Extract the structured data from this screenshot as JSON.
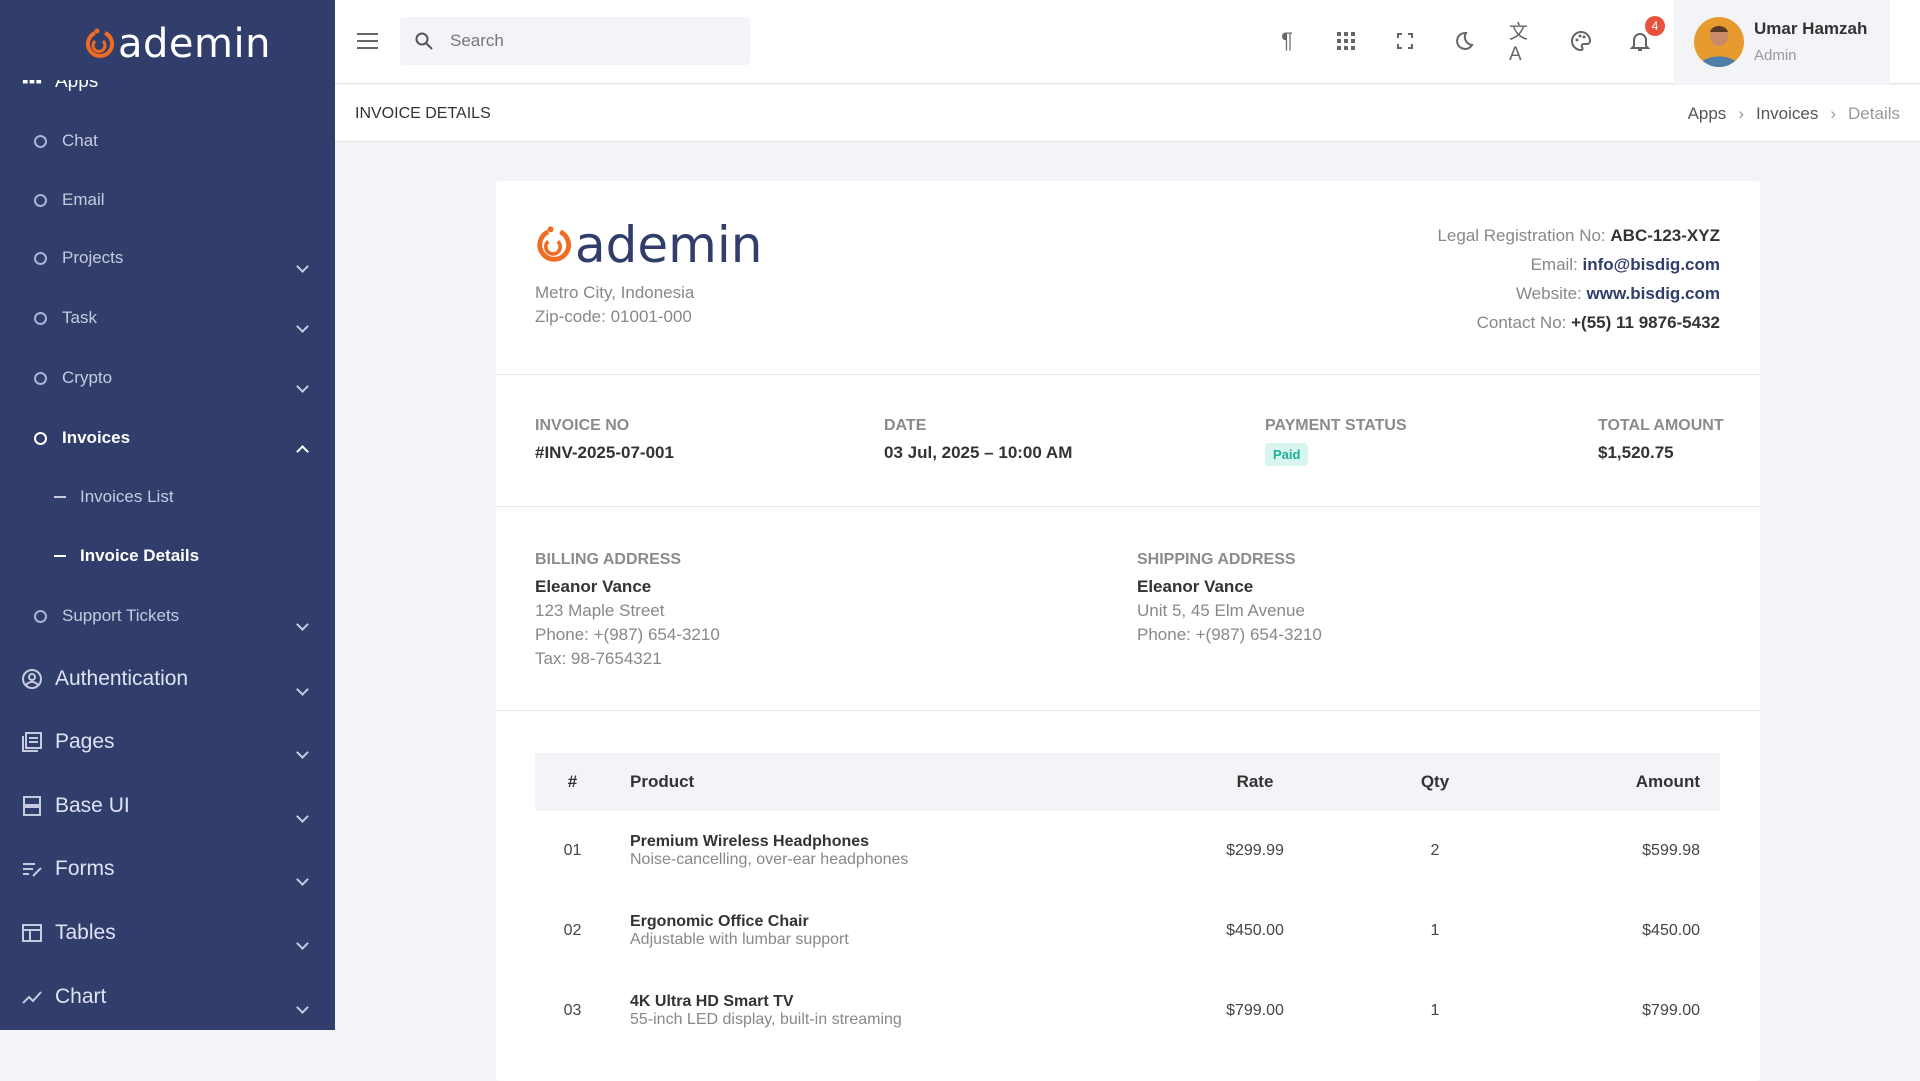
{
  "brand": {
    "name": "ademin",
    "accent": "#f06c22",
    "sidebar_bg": "#313d6b"
  },
  "sidebar": {
    "apps_label": "Apps",
    "items": [
      {
        "label": "Chat"
      },
      {
        "label": "Email"
      },
      {
        "label": "Projects",
        "chevron": "down"
      },
      {
        "label": "Task",
        "chevron": "down"
      },
      {
        "label": "Crypto",
        "chevron": "down"
      },
      {
        "label": "Invoices",
        "chevron": "up",
        "active": true
      },
      {
        "label": "Support Tickets",
        "chevron": "down"
      }
    ],
    "sub_items": [
      {
        "label": "Invoices List"
      },
      {
        "label": "Invoice Details",
        "active": true
      }
    ],
    "sections": [
      {
        "label": "Authentication",
        "icon": "user-circle-icon"
      },
      {
        "label": "Pages",
        "icon": "pages-icon"
      },
      {
        "label": "Base UI",
        "icon": "layers-icon"
      },
      {
        "label": "Forms",
        "icon": "form-edit-icon"
      },
      {
        "label": "Tables",
        "icon": "table-icon"
      },
      {
        "label": "Chart",
        "icon": "chart-line-icon"
      }
    ]
  },
  "topbar": {
    "search_placeholder": "Search",
    "notification_count": "4",
    "user": {
      "name": "Umar Hamzah",
      "role": "Admin"
    }
  },
  "page": {
    "title": "INVOICE DETAILS",
    "breadcrumb": [
      "Apps",
      "Invoices",
      "Details"
    ]
  },
  "invoice": {
    "company": {
      "address1": "Metro City, Indonesia",
      "address2": "Zip-code: 01001-000",
      "reg_label": "Legal Registration No:",
      "reg": "ABC-123-XYZ",
      "email_label": "Email:",
      "email": "info@bisdig.com",
      "website_label": "Website:",
      "website": "www.bisdig.com",
      "contact_label": "Contact No:",
      "contact": "+(55) 11 9876-5432"
    },
    "info": {
      "no_label": "INVOICE NO",
      "no": "#INV-2025-07-001",
      "date_label": "DATE",
      "date": "03 Jul, 2025 – 10:00 AM",
      "status_label": "PAYMENT STATUS",
      "status": "Paid",
      "total_label": "TOTAL AMOUNT",
      "total": "$1,520.75"
    },
    "billing": {
      "label": "BILLING ADDRESS",
      "name": "Eleanor Vance",
      "line1": "123 Maple Street",
      "phone": "Phone: +(987) 654-3210",
      "tax": "Tax: 98-7654321"
    },
    "shipping": {
      "label": "SHIPPING ADDRESS",
      "name": "Eleanor Vance",
      "line1": "Unit 5, 45 Elm Avenue",
      "phone": "Phone: +(987) 654-3210"
    },
    "table": {
      "headers": [
        "#",
        "Product",
        "Rate",
        "Qty",
        "Amount"
      ],
      "rows": [
        {
          "no": "01",
          "name": "Premium Wireless Headphones",
          "desc": "Noise-cancelling, over-ear headphones",
          "rate": "$299.99",
          "qty": "2",
          "amount": "$599.98"
        },
        {
          "no": "02",
          "name": "Ergonomic Office Chair",
          "desc": "Adjustable with lumbar support",
          "rate": "$450.00",
          "qty": "1",
          "amount": "$450.00"
        },
        {
          "no": "03",
          "name": "4K Ultra HD Smart TV",
          "desc": "55-inch LED display, built-in streaming",
          "rate": "$799.00",
          "qty": "1",
          "amount": "$799.00"
        }
      ]
    }
  }
}
